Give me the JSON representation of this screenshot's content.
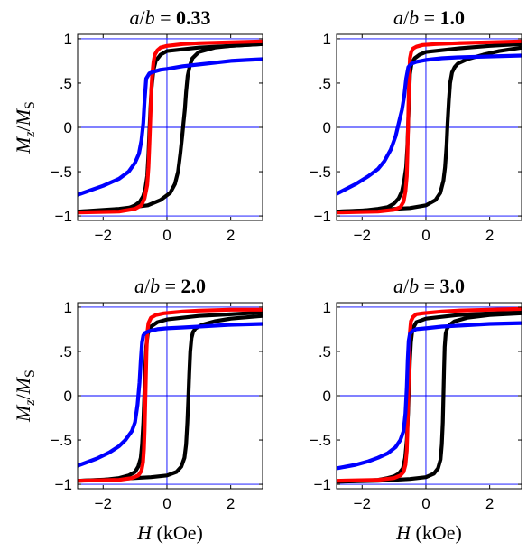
{
  "chart_data": [
    {
      "type": "line",
      "title_prefix": "a/b = ",
      "title_value": "0.33",
      "xlabel_var": "H",
      "xlabel_unit": "(kOe)",
      "ylabel": "Mz/MS",
      "xlim": [
        -2.8,
        3.0
      ],
      "ylim": [
        -1.05,
        1.05
      ],
      "xticks": [
        -2,
        0,
        2
      ],
      "yticks": [
        -1,
        -0.5,
        0,
        0.5,
        1
      ],
      "reference_lines": {
        "x": [
          0
        ],
        "y": [
          -1,
          0,
          1
        ]
      },
      "series": [
        {
          "color": "#000000",
          "x": [
            -2.8,
            -1.5,
            -0.6,
            -0.2,
            0.1,
            0.25,
            0.35,
            0.42,
            0.48,
            0.52,
            0.56,
            0.6,
            0.65,
            0.72,
            0.8,
            1.0,
            1.5,
            2.0,
            2.5,
            3.0
          ],
          "y": [
            -0.95,
            -0.92,
            -0.88,
            -0.82,
            -0.74,
            -0.64,
            -0.5,
            -0.3,
            -0.1,
            0.05,
            0.2,
            0.4,
            0.58,
            0.7,
            0.78,
            0.85,
            0.9,
            0.92,
            0.93,
            0.94
          ]
        },
        {
          "color": "#000000",
          "x": [
            -2.8,
            -2.0,
            -1.5,
            -1.2,
            -1.0,
            -0.85,
            -0.75,
            -0.68,
            -0.62,
            -0.58,
            -0.55,
            -0.52,
            -0.48,
            -0.42,
            -0.35,
            -0.2,
            0.0,
            1.0,
            2.0,
            3.0
          ],
          "y": [
            -0.95,
            -0.94,
            -0.93,
            -0.91,
            -0.88,
            -0.84,
            -0.78,
            -0.7,
            -0.55,
            -0.3,
            -0.05,
            0.2,
            0.45,
            0.65,
            0.75,
            0.82,
            0.86,
            0.9,
            0.92,
            0.94
          ]
        },
        {
          "color": "#ff0000",
          "x": [
            -2.8,
            -1.5,
            -1.0,
            -0.8,
            -0.7,
            -0.62,
            -0.58,
            -0.55,
            -0.52,
            -0.49,
            -0.46,
            -0.42,
            -0.38,
            -0.3,
            -0.2,
            0.0,
            0.5,
            1.0,
            2.0,
            3.0
          ],
          "y": [
            -0.96,
            -0.95,
            -0.92,
            -0.88,
            -0.8,
            -0.65,
            -0.45,
            -0.2,
            0.1,
            0.4,
            0.6,
            0.74,
            0.82,
            0.87,
            0.9,
            0.92,
            0.94,
            0.95,
            0.96,
            0.97
          ]
        },
        {
          "color": "#0000ff",
          "x": [
            -2.8,
            -2.0,
            -1.5,
            -1.2,
            -1.0,
            -0.88,
            -0.8,
            -0.74,
            -0.7,
            -0.65,
            -0.55,
            -0.4,
            -0.2,
            0.0,
            0.5,
            1.0,
            1.5,
            2.0,
            2.5,
            3.0
          ],
          "y": [
            -0.76,
            -0.66,
            -0.58,
            -0.5,
            -0.4,
            -0.3,
            -0.15,
            0.05,
            0.3,
            0.55,
            0.61,
            0.63,
            0.65,
            0.66,
            0.69,
            0.71,
            0.73,
            0.75,
            0.76,
            0.77
          ]
        }
      ]
    },
    {
      "type": "line",
      "title_prefix": "a/b = ",
      "title_value": "1.0",
      "xlabel_var": "H",
      "xlabel_unit": "(kOe)",
      "ylabel": "Mz/MS",
      "xlim": [
        -2.8,
        3.0
      ],
      "ylim": [
        -1.05,
        1.05
      ],
      "xticks": [
        -2,
        0,
        2
      ],
      "yticks": [
        -1,
        -0.5,
        0,
        0.5,
        1
      ],
      "reference_lines": {
        "x": [
          0
        ],
        "y": [
          -1,
          0,
          1
        ]
      },
      "series": [
        {
          "color": "#000000",
          "x": [
            -2.8,
            -1.5,
            -0.5,
            0.0,
            0.3,
            0.45,
            0.55,
            0.6,
            0.65,
            0.68,
            0.72,
            0.76,
            0.82,
            0.9,
            1.0,
            1.3,
            1.8,
            2.3,
            3.0
          ],
          "y": [
            -0.95,
            -0.93,
            -0.91,
            -0.88,
            -0.82,
            -0.74,
            -0.6,
            -0.45,
            -0.2,
            0.05,
            0.3,
            0.5,
            0.62,
            0.68,
            0.72,
            0.77,
            0.82,
            0.86,
            0.9
          ]
        },
        {
          "color": "#000000",
          "x": [
            -2.8,
            -2.0,
            -1.5,
            -1.2,
            -1.0,
            -0.85,
            -0.75,
            -0.68,
            -0.62,
            -0.58,
            -0.55,
            -0.52,
            -0.5,
            -0.45,
            -0.35,
            -0.2,
            0.0,
            1.0,
            2.0,
            3.0
          ],
          "y": [
            -0.95,
            -0.94,
            -0.92,
            -0.9,
            -0.86,
            -0.8,
            -0.72,
            -0.6,
            -0.45,
            -0.2,
            0.1,
            0.4,
            0.6,
            0.72,
            0.78,
            0.82,
            0.85,
            0.89,
            0.92,
            0.94
          ]
        },
        {
          "color": "#ff0000",
          "x": [
            -2.8,
            -1.5,
            -1.0,
            -0.8,
            -0.7,
            -0.64,
            -0.6,
            -0.58,
            -0.56,
            -0.54,
            -0.52,
            -0.5,
            -0.46,
            -0.4,
            -0.3,
            -0.1,
            0.3,
            1.0,
            2.0,
            3.0
          ],
          "y": [
            -0.96,
            -0.95,
            -0.93,
            -0.9,
            -0.84,
            -0.72,
            -0.55,
            -0.3,
            0.0,
            0.35,
            0.62,
            0.78,
            0.85,
            0.89,
            0.91,
            0.93,
            0.94,
            0.95,
            0.96,
            0.97
          ]
        },
        {
          "color": "#0000ff",
          "x": [
            -2.8,
            -2.2,
            -1.8,
            -1.5,
            -1.3,
            -1.1,
            -0.95,
            -0.85,
            -0.75,
            -0.68,
            -0.62,
            -0.55,
            -0.45,
            -0.3,
            0.0,
            0.5,
            1.0,
            2.0,
            3.0
          ],
          "y": [
            -0.75,
            -0.64,
            -0.55,
            -0.47,
            -0.38,
            -0.25,
            -0.1,
            0.05,
            0.2,
            0.35,
            0.55,
            0.68,
            0.72,
            0.74,
            0.76,
            0.78,
            0.79,
            0.8,
            0.81
          ]
        }
      ]
    },
    {
      "type": "line",
      "title_prefix": "a/b = ",
      "title_value": "2.0",
      "xlabel_var": "H",
      "xlabel_unit": "(kOe)",
      "ylabel": "Mz/MS",
      "xlim": [
        -2.8,
        3.0
      ],
      "ylim": [
        -1.05,
        1.05
      ],
      "xticks": [
        -2,
        0,
        2
      ],
      "yticks": [
        -1,
        -0.5,
        0,
        0.5,
        1
      ],
      "reference_lines": {
        "x": [
          0
        ],
        "y": [
          -1,
          0,
          1
        ]
      },
      "series": [
        {
          "color": "#000000",
          "x": [
            -2.8,
            -1.5,
            -0.5,
            0.0,
            0.3,
            0.45,
            0.55,
            0.6,
            0.64,
            0.67,
            0.7,
            0.73,
            0.77,
            0.82,
            0.9,
            1.1,
            1.5,
            2.0,
            3.0
          ],
          "y": [
            -0.96,
            -0.94,
            -0.92,
            -0.9,
            -0.86,
            -0.8,
            -0.7,
            -0.55,
            -0.3,
            -0.05,
            0.25,
            0.5,
            0.65,
            0.72,
            0.76,
            0.8,
            0.84,
            0.87,
            0.9
          ]
        },
        {
          "color": "#000000",
          "x": [
            -2.8,
            -2.0,
            -1.5,
            -1.2,
            -1.0,
            -0.9,
            -0.82,
            -0.78,
            -0.74,
            -0.71,
            -0.68,
            -0.65,
            -0.6,
            -0.5,
            -0.3,
            0.0,
            1.0,
            2.0,
            3.0
          ],
          "y": [
            -0.96,
            -0.95,
            -0.93,
            -0.9,
            -0.86,
            -0.8,
            -0.7,
            -0.55,
            -0.3,
            0.0,
            0.3,
            0.55,
            0.7,
            0.78,
            0.83,
            0.86,
            0.9,
            0.92,
            0.94
          ]
        },
        {
          "color": "#ff0000",
          "x": [
            -2.8,
            -1.5,
            -1.1,
            -0.9,
            -0.8,
            -0.75,
            -0.72,
            -0.7,
            -0.68,
            -0.66,
            -0.64,
            -0.62,
            -0.58,
            -0.5,
            -0.35,
            -0.1,
            0.5,
            1.0,
            2.0,
            3.0
          ],
          "y": [
            -0.96,
            -0.95,
            -0.93,
            -0.9,
            -0.85,
            -0.75,
            -0.6,
            -0.4,
            -0.1,
            0.2,
            0.5,
            0.7,
            0.82,
            0.88,
            0.91,
            0.93,
            0.95,
            0.96,
            0.97,
            0.97
          ]
        },
        {
          "color": "#0000ff",
          "x": [
            -2.8,
            -2.2,
            -1.8,
            -1.5,
            -1.3,
            -1.1,
            -1.0,
            -0.92,
            -0.86,
            -0.82,
            -0.78,
            -0.74,
            -0.68,
            -0.55,
            -0.3,
            0.0,
            0.5,
            1.0,
            2.0,
            3.0
          ],
          "y": [
            -0.79,
            -0.71,
            -0.64,
            -0.57,
            -0.5,
            -0.4,
            -0.3,
            -0.1,
            0.15,
            0.4,
            0.6,
            0.68,
            0.71,
            0.73,
            0.75,
            0.76,
            0.77,
            0.78,
            0.8,
            0.81
          ]
        }
      ]
    },
    {
      "type": "line",
      "title_prefix": "a/b = ",
      "title_value": "3.0",
      "xlabel_var": "H",
      "xlabel_unit": "(kOe)",
      "ylabel": "Mz/MS",
      "xlim": [
        -2.8,
        3.0
      ],
      "ylim": [
        -1.05,
        1.05
      ],
      "xticks": [
        -2,
        0,
        2
      ],
      "yticks": [
        -1,
        -0.5,
        0,
        0.5,
        1
      ],
      "reference_lines": {
        "x": [
          0
        ],
        "y": [
          -1,
          0,
          1
        ]
      },
      "series": [
        {
          "color": "#000000",
          "x": [
            -2.8,
            -1.5,
            -0.5,
            0.0,
            0.25,
            0.38,
            0.46,
            0.5,
            0.53,
            0.55,
            0.57,
            0.59,
            0.62,
            0.67,
            0.75,
            0.9,
            1.3,
            2.0,
            3.0
          ],
          "y": [
            -0.97,
            -0.96,
            -0.94,
            -0.92,
            -0.88,
            -0.82,
            -0.72,
            -0.55,
            -0.3,
            0.0,
            0.3,
            0.55,
            0.7,
            0.76,
            0.8,
            0.84,
            0.88,
            0.91,
            0.93
          ]
        },
        {
          "color": "#000000",
          "x": [
            -2.8,
            -2.0,
            -1.5,
            -1.2,
            -1.0,
            -0.85,
            -0.72,
            -0.65,
            -0.6,
            -0.56,
            -0.53,
            -0.5,
            -0.47,
            -0.42,
            -0.3,
            0.0,
            1.0,
            2.0,
            3.0
          ],
          "y": [
            -0.97,
            -0.96,
            -0.95,
            -0.93,
            -0.91,
            -0.88,
            -0.82,
            -0.7,
            -0.5,
            -0.2,
            0.1,
            0.4,
            0.6,
            0.75,
            0.83,
            0.87,
            0.91,
            0.93,
            0.94
          ]
        },
        {
          "color": "#ff0000",
          "x": [
            -2.8,
            -1.5,
            -1.0,
            -0.8,
            -0.7,
            -0.64,
            -0.6,
            -0.58,
            -0.56,
            -0.54,
            -0.52,
            -0.5,
            -0.47,
            -0.4,
            -0.3,
            -0.1,
            0.5,
            1.0,
            2.0,
            3.0
          ],
          "y": [
            -0.96,
            -0.95,
            -0.93,
            -0.9,
            -0.86,
            -0.78,
            -0.62,
            -0.4,
            -0.1,
            0.2,
            0.5,
            0.72,
            0.84,
            0.89,
            0.92,
            0.93,
            0.95,
            0.96,
            0.97,
            0.98
          ]
        },
        {
          "color": "#0000ff",
          "x": [
            -2.8,
            -2.2,
            -1.8,
            -1.5,
            -1.2,
            -0.95,
            -0.8,
            -0.7,
            -0.64,
            -0.6,
            -0.57,
            -0.54,
            -0.5,
            -0.42,
            -0.3,
            0.0,
            0.5,
            1.0,
            2.0,
            3.0
          ],
          "y": [
            -0.82,
            -0.78,
            -0.74,
            -0.7,
            -0.65,
            -0.58,
            -0.5,
            -0.4,
            -0.2,
            0.1,
            0.4,
            0.62,
            0.7,
            0.73,
            0.75,
            0.76,
            0.78,
            0.79,
            0.81,
            0.82
          ]
        }
      ]
    }
  ]
}
